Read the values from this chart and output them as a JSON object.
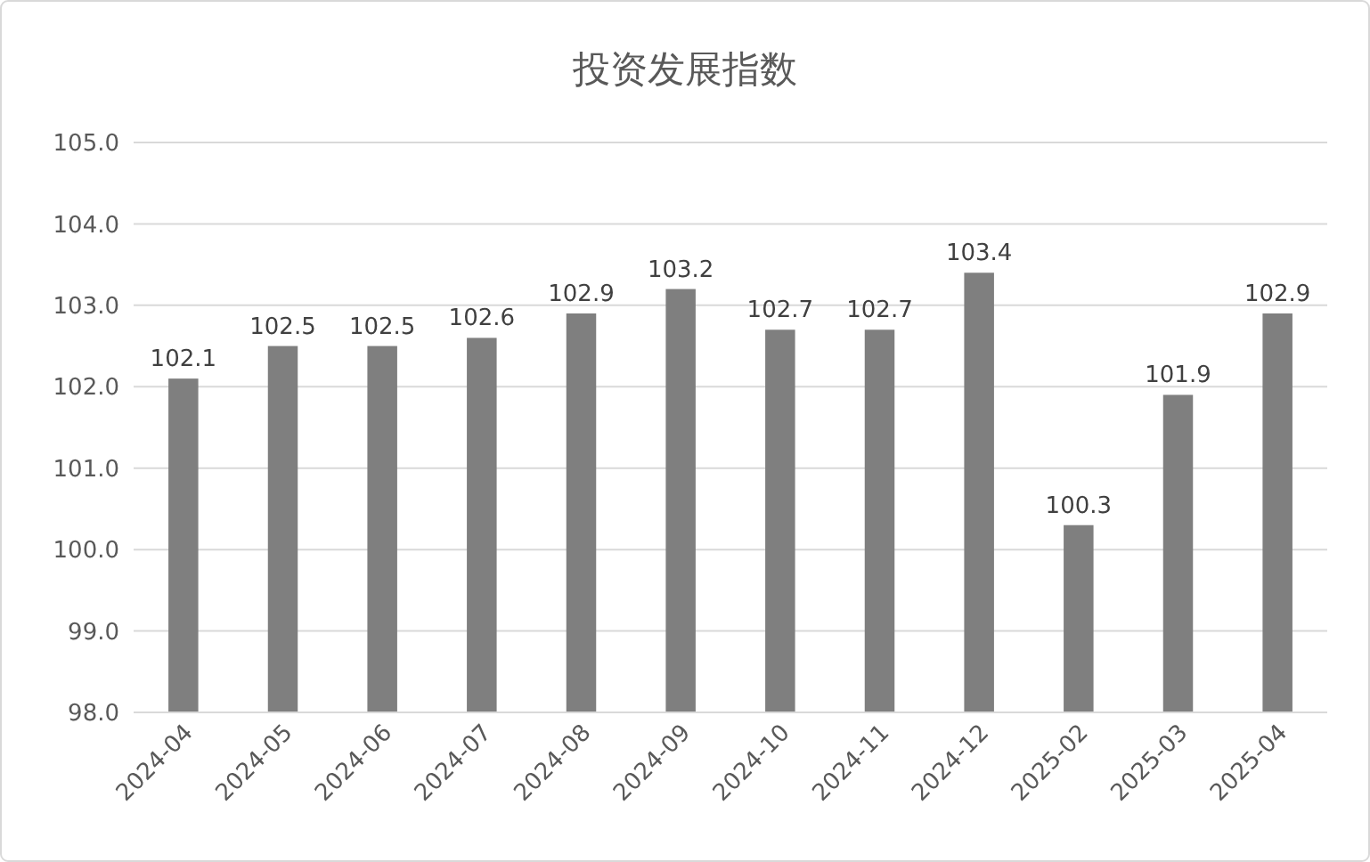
{
  "chart_data": {
    "type": "bar",
    "title": "投资发展指数",
    "categories": [
      "2024-04",
      "2024-05",
      "2024-06",
      "2024-07",
      "2024-08",
      "2024-09",
      "2024-10",
      "2024-11",
      "2024-12",
      "2025-02",
      "2025-03",
      "2025-04"
    ],
    "values": [
      102.1,
      102.5,
      102.5,
      102.6,
      102.9,
      103.2,
      102.7,
      102.7,
      103.4,
      100.3,
      101.9,
      102.9
    ],
    "color": "#7f7f7f",
    "ylim": [
      98,
      105
    ],
    "yticks": [
      {
        "value": 98,
        "label": "98.0"
      },
      {
        "value": 99,
        "label": "99.0"
      },
      {
        "value": 100,
        "label": "100.0"
      },
      {
        "value": 101,
        "label": "101.0"
      },
      {
        "value": 102,
        "label": "102.0"
      },
      {
        "value": 103,
        "label": "103.0"
      },
      {
        "value": 104,
        "label": "104.0"
      },
      {
        "value": 105,
        "label": "105.0"
      }
    ],
    "grid": "y",
    "data_labels": true
  }
}
